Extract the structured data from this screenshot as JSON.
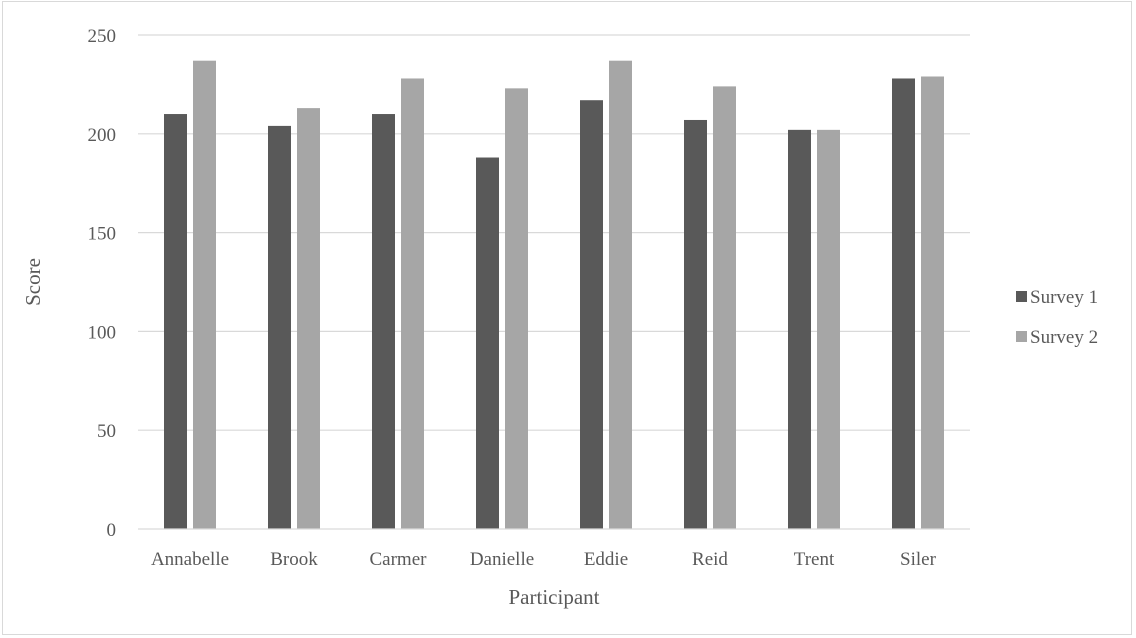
{
  "chart_data": {
    "type": "bar",
    "title": "",
    "xlabel": "Participant",
    "ylabel": "Score",
    "ylim": [
      0,
      250
    ],
    "yticks": [
      0,
      50,
      100,
      150,
      200,
      250
    ],
    "categories": [
      "Annabelle",
      "Brook",
      "Carmer",
      "Danielle",
      "Eddie",
      "Reid",
      "Trent",
      "Siler"
    ],
    "series": [
      {
        "name": "Survey 1",
        "color": "#595959",
        "values": [
          210,
          204,
          210,
          188,
          217,
          207,
          202,
          228
        ]
      },
      {
        "name": "Survey 2",
        "color": "#a6a6a6",
        "values": [
          237,
          213,
          228,
          223,
          237,
          224,
          202,
          229
        ]
      }
    ],
    "grid": true,
    "legend_position": "right"
  }
}
